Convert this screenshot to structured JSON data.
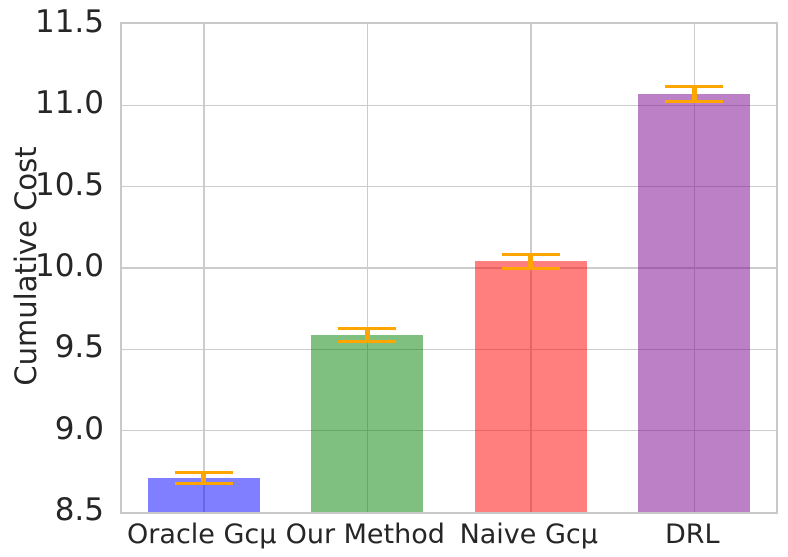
{
  "chart_data": {
    "type": "bar",
    "title": "",
    "xlabel": "",
    "ylabel": "Cumulative Cost",
    "categories": [
      "Oracle Gcμ",
      "Our Method",
      "Naive Gcμ",
      "DRL"
    ],
    "values": [
      8.71,
      9.59,
      10.04,
      11.07
    ],
    "errors": [
      0.035,
      0.04,
      0.04,
      0.045
    ],
    "ylim": [
      8.5,
      11.5
    ],
    "yticks": [
      8.5,
      9.0,
      9.5,
      10.0,
      10.5,
      11.0,
      11.5
    ],
    "ytick_labels": [
      "8.5",
      "9.0",
      "9.5",
      "10.0",
      "10.5",
      "11.0",
      "11.5"
    ],
    "grid": true,
    "legend": false,
    "bar_fill_rgba": [
      "rgba(0,0,255,0.5)",
      "rgba(0,128,0,0.5)",
      "rgba(255,0,0,0.5)",
      "rgba(121,1,141,0.5)"
    ],
    "bar_composite_hex": [
      "#8080FF",
      "#80C080",
      "#FF8080",
      "#BC80C6"
    ],
    "error_bar_color": "#FFA500",
    "grid_color": "#CCCCCC",
    "spine_color": "#C9C9C9",
    "text_color": "#262626",
    "background_color": "#FFFFFF"
  }
}
